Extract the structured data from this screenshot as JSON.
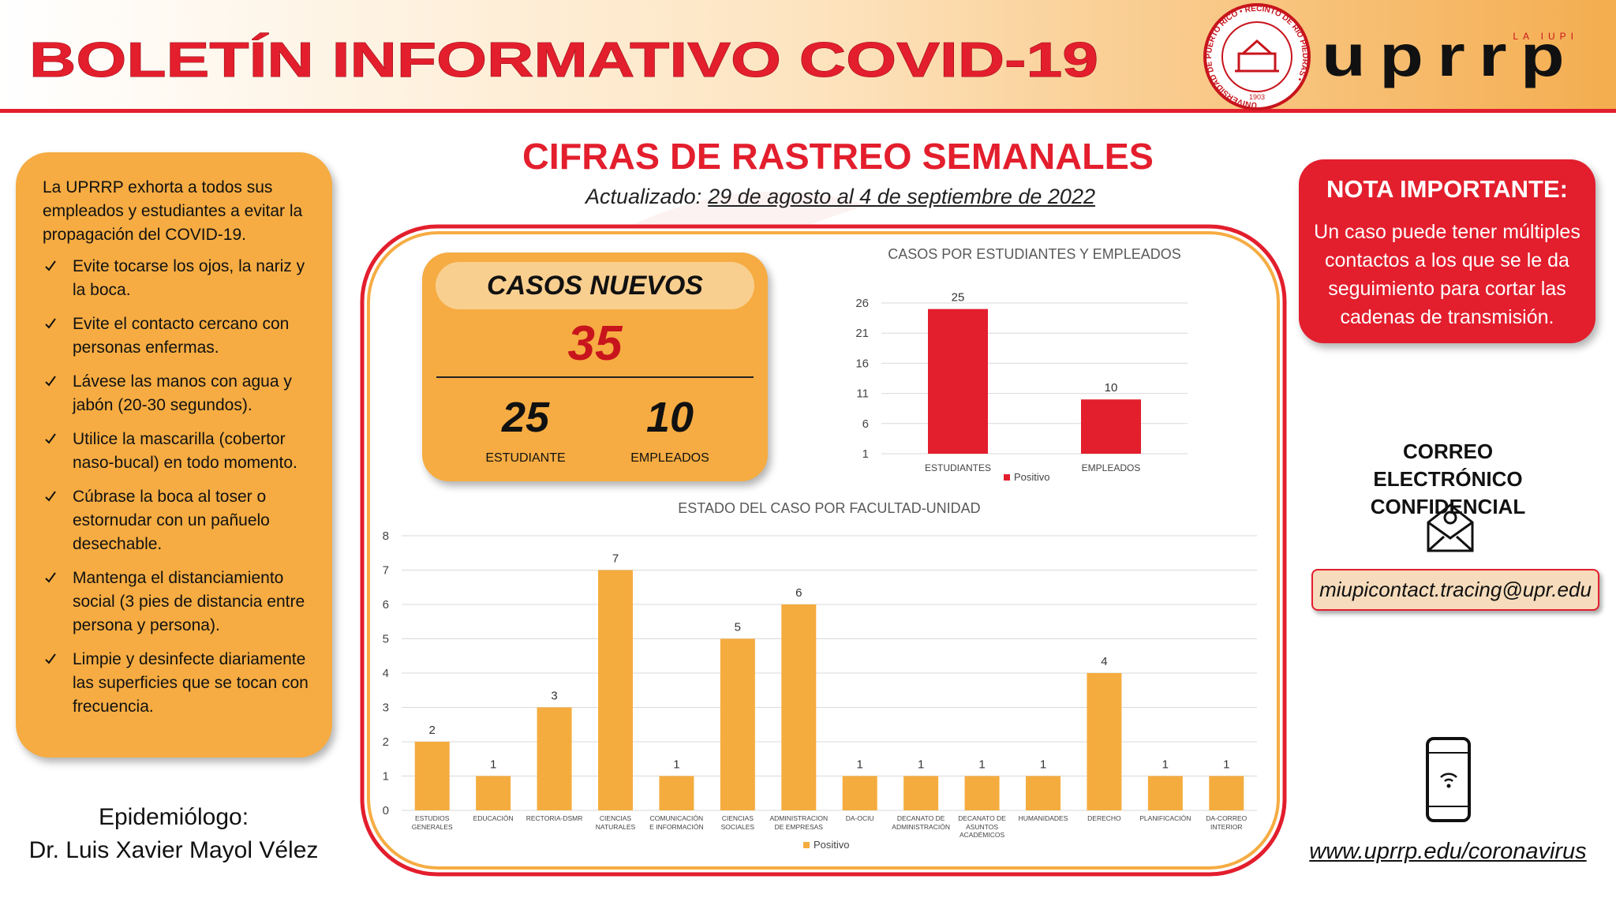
{
  "header": {
    "title": "BOLETÍN INFORMATIVO COVID-19",
    "seal_text": "UNIVERSIDAD DE PUERTO RICO • RECINTO DE RÍO PIEDRAS •",
    "seal_year": "1903",
    "logo_text": "uprrp",
    "logo_tagline": "LA IUPI"
  },
  "left_panel": {
    "intro": "La UPRRP exhorta a todos sus empleados y estudiantes a evitar la propagación del COVID-19.",
    "items": [
      "Evite tocarse los ojos, la nariz y la boca.",
      "Evite el contacto cercano con personas enfermas.",
      "Lávese las manos con agua y jabón (20-30 segundos).",
      "Utilice la mascarilla (cobertor naso-bucal) en todo momento.",
      "Cúbrase la boca al toser o estornudar con un pañuelo desechable.",
      "Mantenga el distanciamiento social (3 pies de distancia entre persona y persona).",
      "Limpie y desinfecte diariamente las superficies que se tocan con frecuencia."
    ]
  },
  "epidemiologist": {
    "role": "Epidemiólogo:",
    "name": "Dr. Luis Xavier Mayol Vélez"
  },
  "main": {
    "title": "CIFRAS DE RASTREO SEMANALES",
    "updated_label": "Actualizado:",
    "updated_range": "29 de agosto al 4 de septiembre de 2022"
  },
  "new_cases": {
    "title": "CASOS NUEVOS",
    "total": 35,
    "students": 25,
    "students_label": "ESTUDIANTE",
    "employees": 10,
    "employees_label": "EMPLEADOS"
  },
  "chart_data": [
    {
      "type": "bar",
      "title": "CASOS POR ESTUDIANTES Y EMPLEADOS",
      "categories": [
        "ESTUDIANTES",
        "EMPLEADOS"
      ],
      "series": [
        {
          "name": "Positivo",
          "color": "#e31e2d",
          "values": [
            25,
            10
          ]
        }
      ],
      "ylim": [
        1,
        26
      ],
      "yticks": [
        1,
        6,
        11,
        16,
        21,
        26
      ],
      "grid": true,
      "legend": "bottom"
    },
    {
      "type": "bar",
      "title": "ESTADO DEL CASO POR FACULTAD-UNIDAD",
      "categories": [
        "ESTUDIOS GENERALES",
        "EDUCACIÓN",
        "RECTORIA-DSMR",
        "CIENCIAS NATURALES",
        "COMUNICACIÓN E INFORMACIÓN",
        "CIENCIAS SOCIALES",
        "ADMINISTRACION DE EMPRESAS",
        "DA-OCIU",
        "DECANATO DE ADMINISTRACIÓN",
        "DECANATO DE ASUNTOS ACADÉMICOS",
        "HUMANIDADES",
        "DERECHO",
        "PLANIFICACIÓN",
        "DA-CORREO INTERIOR"
      ],
      "series": [
        {
          "name": "Positivo",
          "color": "#f5ac3e",
          "values": [
            2,
            1,
            3,
            7,
            1,
            5,
            6,
            1,
            1,
            1,
            1,
            4,
            1,
            1
          ]
        }
      ],
      "ylim": [
        0,
        8
      ],
      "yticks": [
        0,
        1,
        2,
        3,
        4,
        5,
        6,
        7,
        8
      ],
      "grid": true,
      "legend": "bottom"
    }
  ],
  "right_panel": {
    "note_title": "NOTA IMPORTANTE:",
    "note_text": "Un caso puede tener múltiples contactos a los que se le da seguimiento para cortar las cadenas de transmisión.",
    "email_heading": "CORREO ELECTRÓNICO CONFIDENCIAL",
    "email": "miupicontact.tracing@upr.edu",
    "website": "www.uprrp.edu/coronavirus"
  }
}
